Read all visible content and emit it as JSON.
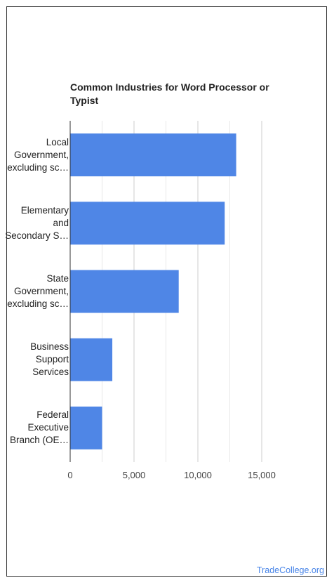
{
  "chart_data": {
    "type": "bar",
    "orientation": "horizontal",
    "title": "Common Industries for Word Processor or Typist",
    "categories": [
      [
        "Local",
        "Government,",
        "excluding sc…"
      ],
      [
        "Elementary",
        "and",
        "Secondary S…"
      ],
      [
        "State",
        "Government,",
        "excluding sc…"
      ],
      [
        "Business",
        "Support",
        "Services"
      ],
      [
        "Federal",
        "Executive",
        "Branch (OE…"
      ]
    ],
    "values": [
      13000,
      12100,
      8500,
      3300,
      2500
    ],
    "xlim": [
      0,
      15000
    ],
    "xticks": [
      0,
      5000,
      10000,
      15000
    ],
    "xtick_labels": [
      "0",
      "5,000",
      "10,000",
      "15,000"
    ],
    "grid": true,
    "bar_color": "#4f86e6",
    "xlabel": "",
    "ylabel": ""
  },
  "footer": {
    "brand": "TradeCollege.org"
  }
}
